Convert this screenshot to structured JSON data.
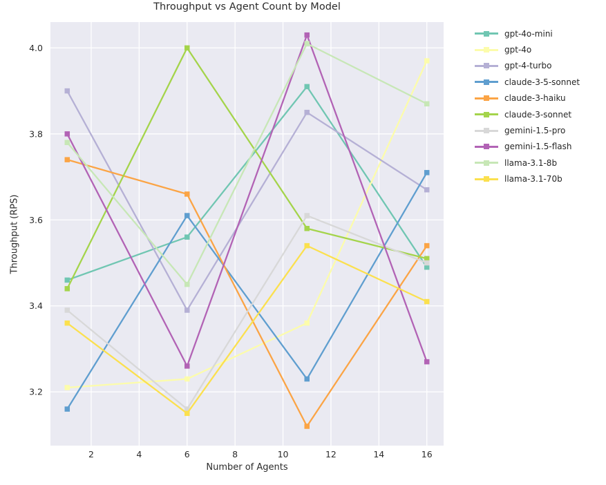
{
  "chart_data": {
    "type": "line",
    "title": "Throughput vs Agent Count by Model",
    "xlabel": "Number of Agents",
    "ylabel": "Throughput (RPS)",
    "x": [
      1,
      6,
      11,
      16
    ],
    "xticks": [
      2,
      4,
      6,
      8,
      10,
      12,
      14,
      16
    ],
    "yticks": [
      3.2,
      3.4,
      3.6,
      3.8,
      4.0
    ],
    "xlim": [
      0.3,
      16.7
    ],
    "ylim": [
      3.075,
      4.06
    ],
    "grid": true,
    "plot_bg_color": "#eaeaf2",
    "grid_color": "#ffffff",
    "marker": "square",
    "legend_position": "right-outside",
    "series": [
      {
        "name": "gpt-4o-mini",
        "color": "#70c6b2",
        "values": [
          3.46,
          3.56,
          3.91,
          3.49
        ]
      },
      {
        "name": "gpt-4o",
        "color": "#fcfcab",
        "values": [
          3.21,
          3.23,
          3.36,
          3.97
        ]
      },
      {
        "name": "gpt-4-turbo",
        "color": "#b5b0d5",
        "values": [
          3.9,
          3.39,
          3.85,
          3.67
        ]
      },
      {
        "name": "claude-3-5-sonnet",
        "color": "#5f9ecf",
        "values": [
          3.16,
          3.61,
          3.23,
          3.71
        ]
      },
      {
        "name": "claude-3-haiku",
        "color": "#fba445",
        "values": [
          3.74,
          3.66,
          3.12,
          3.54
        ]
      },
      {
        "name": "claude-3-sonnet",
        "color": "#a4d44b",
        "values": [
          3.44,
          4.0,
          3.58,
          3.51
        ]
      },
      {
        "name": "gemini-1.5-pro",
        "color": "#d8d8d8",
        "values": [
          3.39,
          3.16,
          3.61,
          3.5
        ]
      },
      {
        "name": "gemini-1.5-flash",
        "color": "#b263b5",
        "values": [
          3.8,
          3.26,
          4.03,
          3.27
        ]
      },
      {
        "name": "llama-3.1-8b",
        "color": "#c7e7b6",
        "values": [
          3.78,
          3.45,
          4.01,
          3.87
        ]
      },
      {
        "name": "llama-3.1-70b",
        "color": "#fbe04e",
        "values": [
          3.36,
          3.15,
          3.54,
          3.41
        ]
      }
    ]
  }
}
